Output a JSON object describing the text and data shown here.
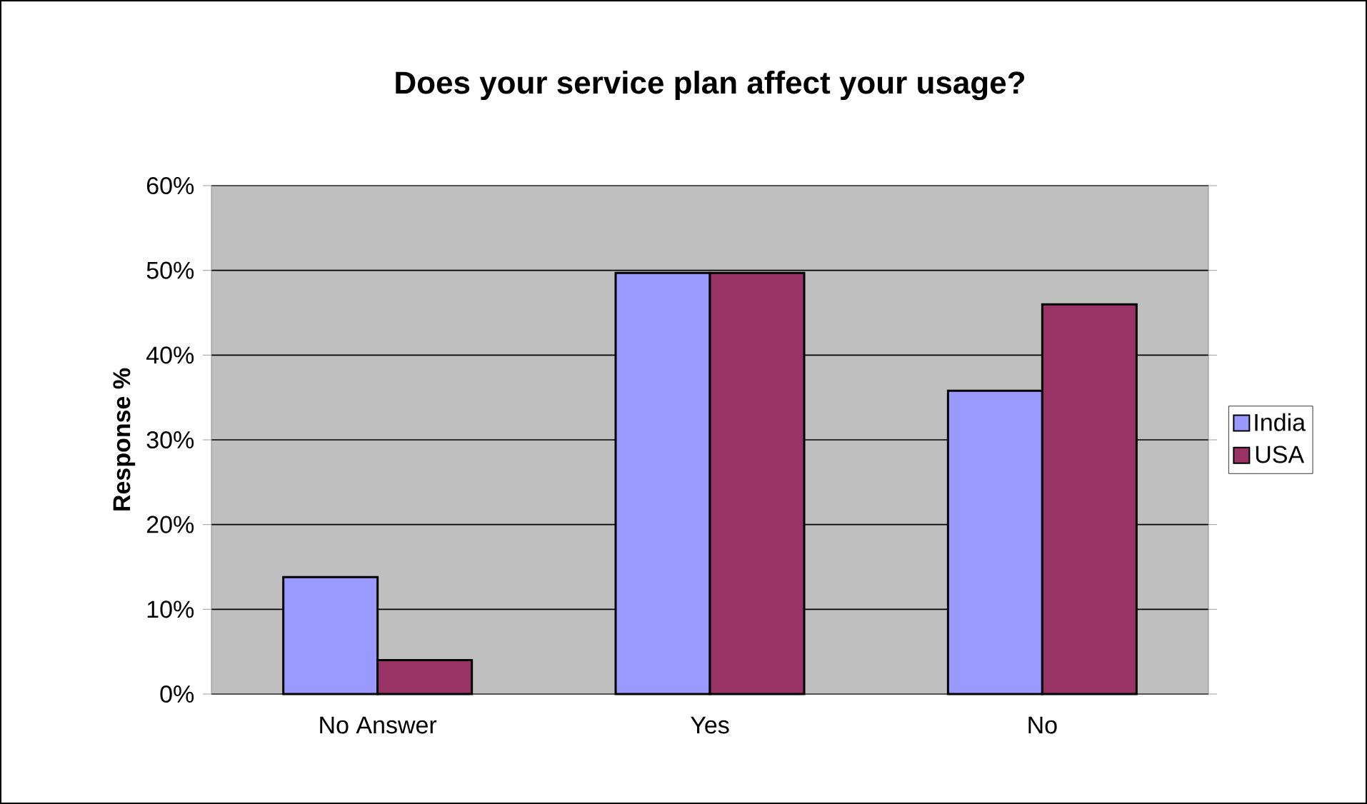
{
  "chart_data": {
    "type": "bar",
    "title": "Does your service plan affect your usage?",
    "ylabel": "Response %",
    "categories": [
      "No Answer",
      "Yes",
      "No"
    ],
    "series": [
      {
        "name": "India",
        "color": "#9999ff",
        "values": [
          13.8,
          49.7,
          35.8
        ]
      },
      {
        "name": "USA",
        "color": "#993366",
        "values": [
          4.0,
          49.7,
          46.0
        ]
      }
    ],
    "ylim": [
      0,
      60
    ],
    "yticks": [
      {
        "value": 0,
        "label": "0%"
      },
      {
        "value": 10,
        "label": "10%"
      },
      {
        "value": 20,
        "label": "20%"
      },
      {
        "value": 30,
        "label": "30%"
      },
      {
        "value": 40,
        "label": "40%"
      },
      {
        "value": 50,
        "label": "50%"
      },
      {
        "value": 60,
        "label": "60%"
      }
    ],
    "grid": "y",
    "legend": "right"
  }
}
